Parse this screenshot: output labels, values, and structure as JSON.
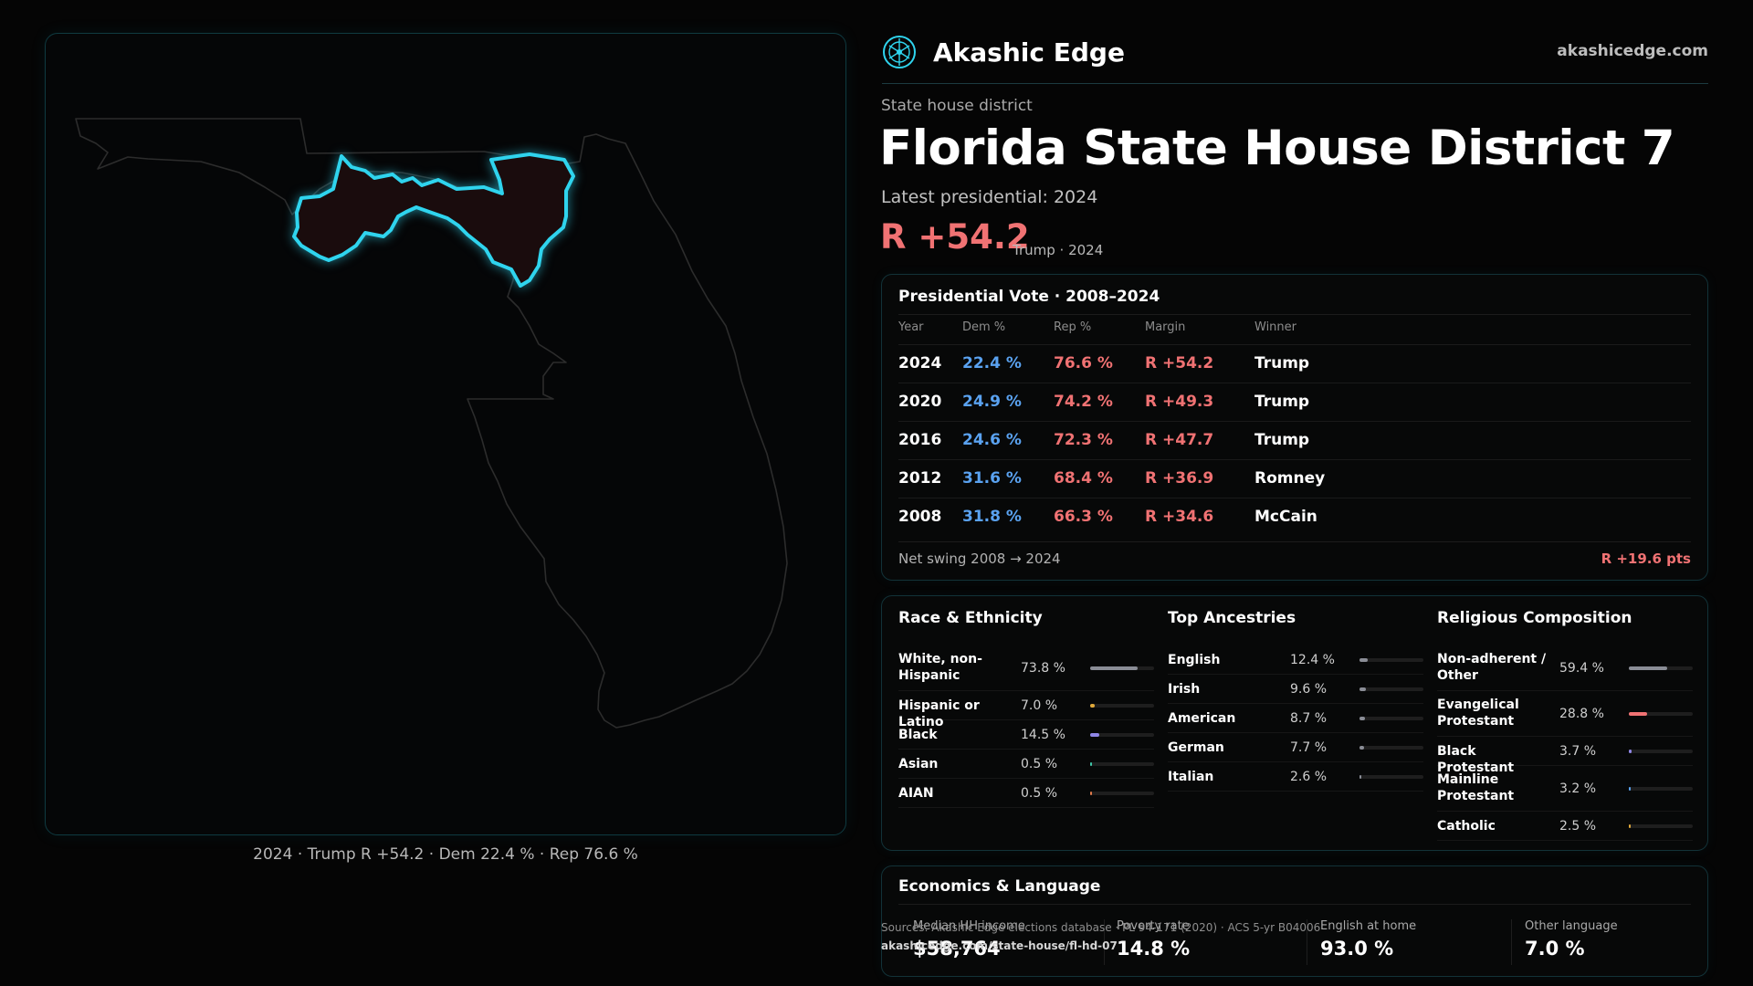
{
  "brand": {
    "name": "Akashic Edge",
    "site": "akashicedge.com",
    "logo_icon": "akashic-compass-logo"
  },
  "district": {
    "kicker": "State house district",
    "title": "Florida State House District 7",
    "latest": "Latest presidential: 2024",
    "margin": "R +54.2",
    "margin_sub": "Trump · 2024"
  },
  "map": {
    "caption": "2024 · Trump R +54.2 · Dem 22.4 % · Rep 76.6 %",
    "highlight_color": "#2fd4ee",
    "outline_color": "#2c2c2c"
  },
  "presidential": {
    "title": "Presidential Vote · 2008–2024",
    "headers": {
      "year": "Year",
      "dem": "Dem %",
      "rep": "Rep %",
      "margin": "Margin",
      "winner": "Winner"
    },
    "rows": [
      {
        "year": "2024",
        "dem": "22.4 %",
        "rep": "76.6 %",
        "margin": "R +54.2",
        "winner": "Trump"
      },
      {
        "year": "2020",
        "dem": "24.9 %",
        "rep": "74.2 %",
        "margin": "R +49.3",
        "winner": "Trump"
      },
      {
        "year": "2016",
        "dem": "24.6 %",
        "rep": "72.3 %",
        "margin": "R +47.7",
        "winner": "Trump"
      },
      {
        "year": "2012",
        "dem": "31.6 %",
        "rep": "68.4 %",
        "margin": "R +36.9",
        "winner": "Romney"
      },
      {
        "year": "2008",
        "dem": "31.8 %",
        "rep": "66.3 %",
        "margin": "R +34.6",
        "winner": "McCain"
      }
    ],
    "swing_label": "Net swing 2008 → 2024",
    "swing_value": "R +19.6 pts"
  },
  "race": {
    "title": "Race & Ethnicity",
    "items": [
      {
        "label": "White, non-Hispanic",
        "value": "73.8 %",
        "pct": 73.8,
        "color": "#8a8d96"
      },
      {
        "label": "Hispanic or Latino",
        "value": "7.0 %",
        "pct": 7.0,
        "color": "#e0a93a"
      },
      {
        "label": "Black",
        "value": "14.5 %",
        "pct": 14.5,
        "color": "#8f86e6"
      },
      {
        "label": "Asian",
        "value": "0.5 %",
        "pct": 0.5,
        "color": "#3fc7a8"
      },
      {
        "label": "AIAN",
        "value": "0.5 %",
        "pct": 0.5,
        "color": "#e07a4a"
      }
    ]
  },
  "ancestry": {
    "title": "Top Ancestries",
    "items": [
      {
        "label": "English",
        "value": "12.4 %",
        "pct": 12.4,
        "color": "#8a8d96"
      },
      {
        "label": "Irish",
        "value": "9.6 %",
        "pct": 9.6,
        "color": "#8a8d96"
      },
      {
        "label": "American",
        "value": "8.7 %",
        "pct": 8.7,
        "color": "#8a8d96"
      },
      {
        "label": "German",
        "value": "7.7 %",
        "pct": 7.7,
        "color": "#8a8d96"
      },
      {
        "label": "Italian",
        "value": "2.6 %",
        "pct": 2.6,
        "color": "#8a8d96"
      }
    ]
  },
  "religion": {
    "title": "Religious Composition",
    "items": [
      {
        "label": "Non-adherent / Other",
        "value": "59.4 %",
        "pct": 59.4,
        "color": "#8a8d96"
      },
      {
        "label": "Evangelical Protestant",
        "value": "28.8 %",
        "pct": 28.8,
        "color": "#f07273"
      },
      {
        "label": "Black Protestant",
        "value": "3.7 %",
        "pct": 3.7,
        "color": "#8f86e6"
      },
      {
        "label": "Mainline Protestant",
        "value": "3.2 %",
        "pct": 3.2,
        "color": "#5aa2f0"
      },
      {
        "label": "Catholic",
        "value": "2.5 %",
        "pct": 2.5,
        "color": "#e0a93a"
      }
    ]
  },
  "economics": {
    "title": "Economics & Language",
    "items": [
      {
        "label": "Median HH income",
        "value": "$58,764"
      },
      {
        "label": "Poverty rate",
        "value": "14.8 %"
      },
      {
        "label": "English at home",
        "value": "93.0 %"
      },
      {
        "label": "Other language",
        "value": "7.0 %"
      }
    ]
  },
  "source": {
    "line": "Sources: Akashic Edge elections database · PL 94-171 (2020) · ACS 5-yr B04006",
    "url": "akashicedge.com/state-house/fl-hd-07"
  }
}
